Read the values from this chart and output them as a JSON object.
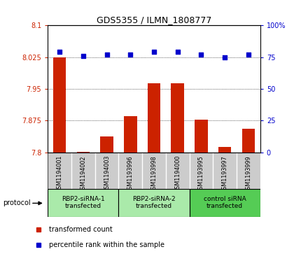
{
  "title": "GDS5355 / ILMN_1808777",
  "samples": [
    "GSM1194001",
    "GSM1194002",
    "GSM1194003",
    "GSM1193996",
    "GSM1193998",
    "GSM1194000",
    "GSM1193995",
    "GSM1193997",
    "GSM1193999"
  ],
  "bar_values": [
    8.025,
    7.802,
    7.838,
    7.885,
    7.963,
    7.963,
    7.878,
    7.813,
    7.856
  ],
  "dot_values": [
    79,
    76,
    77,
    77,
    79,
    79,
    77,
    75,
    77
  ],
  "ylim_left": [
    7.8,
    8.1
  ],
  "ylim_right": [
    0,
    100
  ],
  "yticks_left": [
    7.8,
    7.875,
    7.95,
    8.025,
    8.1
  ],
  "ytick_labels_left": [
    "7.8",
    "7.875",
    "7.95",
    "8.025",
    "8.1"
  ],
  "yticks_right": [
    0,
    25,
    50,
    75,
    100
  ],
  "ytick_labels_right": [
    "0",
    "25",
    "50",
    "75",
    "100%"
  ],
  "bar_color": "#cc2200",
  "dot_color": "#0000cc",
  "groups": [
    {
      "label": "RBP2-siRNA-1\ntransfected",
      "start": 0,
      "end": 3,
      "color": "#aaeaaa"
    },
    {
      "label": "RBP2-siRNA-2\ntransfected",
      "start": 3,
      "end": 6,
      "color": "#aaeaaa"
    },
    {
      "label": "control siRNA\ntransfected",
      "start": 6,
      "end": 9,
      "color": "#55cc55"
    }
  ],
  "protocol_label": "protocol",
  "legend_bar_label": "transformed count",
  "legend_dot_label": "percentile rank within the sample",
  "tick_bg_color": "#cccccc",
  "plot_bg_color": "#ffffff",
  "grid_color": "#000000"
}
